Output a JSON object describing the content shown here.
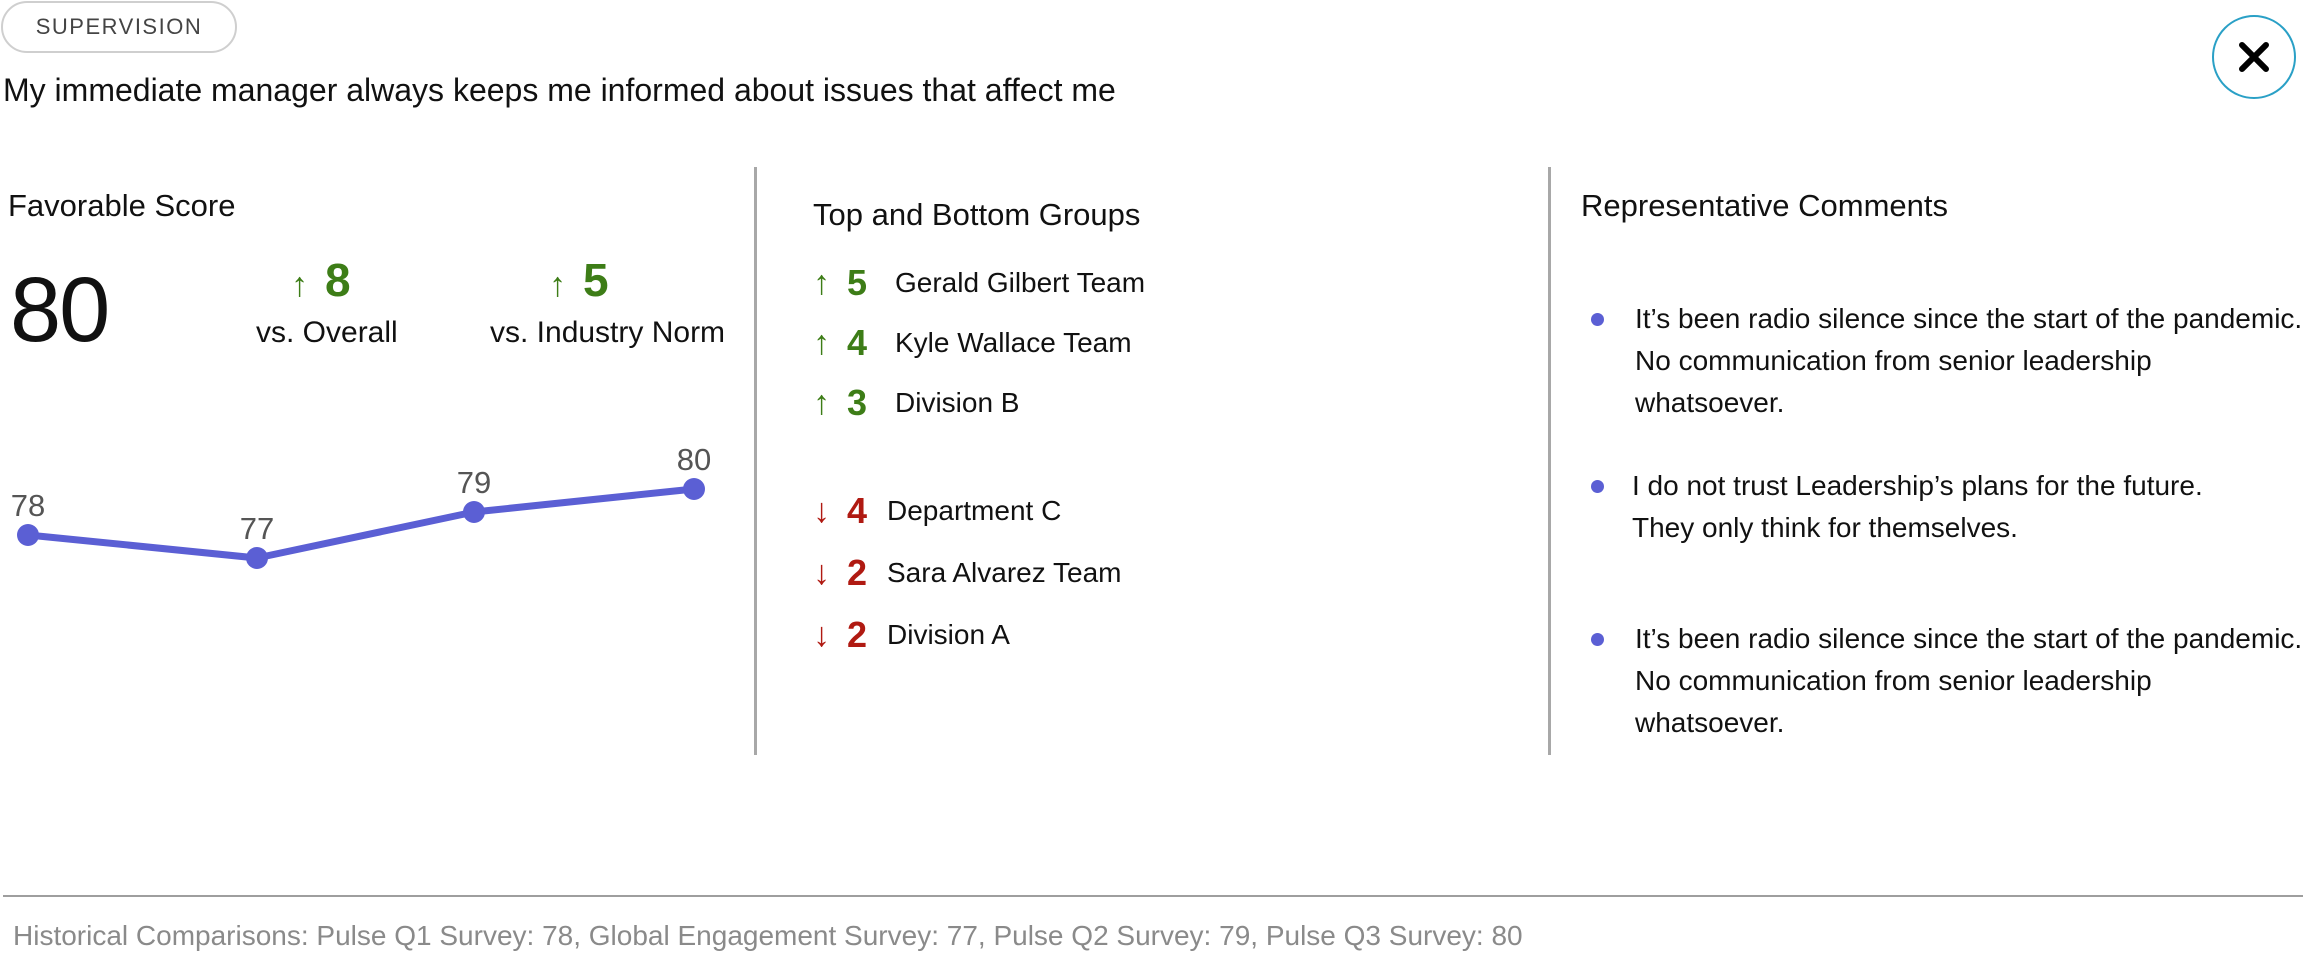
{
  "tag": "SUPERVISION",
  "question": "My immediate manager always keeps me informed about issues that affect me",
  "close_icon": "close-icon",
  "favorable": {
    "title": "Favorable Score",
    "score": "80",
    "vs_overall": {
      "value": "8",
      "label": "vs. Overall",
      "direction": "up"
    },
    "vs_norm": {
      "value": "5",
      "label": "vs. Industry Norm",
      "direction": "up"
    },
    "chart_data": {
      "type": "line",
      "x": [
        "Pulse Q1 Survey",
        "Global Engagement Survey",
        "Pulse Q2 Survey",
        "Pulse Q3 Survey"
      ],
      "values": [
        78,
        77,
        79,
        80
      ],
      "labels": [
        "78",
        "77",
        "79",
        "80"
      ],
      "color": "#5b5fd4"
    }
  },
  "groups": {
    "title": "Top and Bottom Groups",
    "top": [
      {
        "value": "5",
        "name": "Gerald Gilbert Team"
      },
      {
        "value": "4",
        "name": "Kyle Wallace Team"
      },
      {
        "value": "3",
        "name": "Division B"
      }
    ],
    "bottom": [
      {
        "value": "4",
        "name": "Department C"
      },
      {
        "value": "2",
        "name": "Sara Alvarez Team"
      },
      {
        "value": "2",
        "name": "Division A"
      }
    ],
    "up_arrow": "↑",
    "down_arrow": "↓",
    "up_color": "#3d7d17",
    "down_color": "#b01a12"
  },
  "comments": {
    "title": "Representative Comments",
    "items": [
      {
        "lines": [
          "It’s been radio silence since the start of the pandemic.",
          "No communication from senior leadership",
          "whatsoever."
        ]
      },
      {
        "lines": [
          "I do not trust Leadership’s plans for the future.",
          "They only think for themselves."
        ]
      },
      {
        "lines": [
          "It’s been radio silence since the start of the pandemic.",
          "No communication from senior leadership",
          "whatsoever."
        ]
      }
    ]
  },
  "footer": "Historical Comparisons:  Pulse Q1 Survey: 78,  Global Engagement Survey: 77,  Pulse Q2 Survey: 79,  Pulse Q3 Survey: 80"
}
